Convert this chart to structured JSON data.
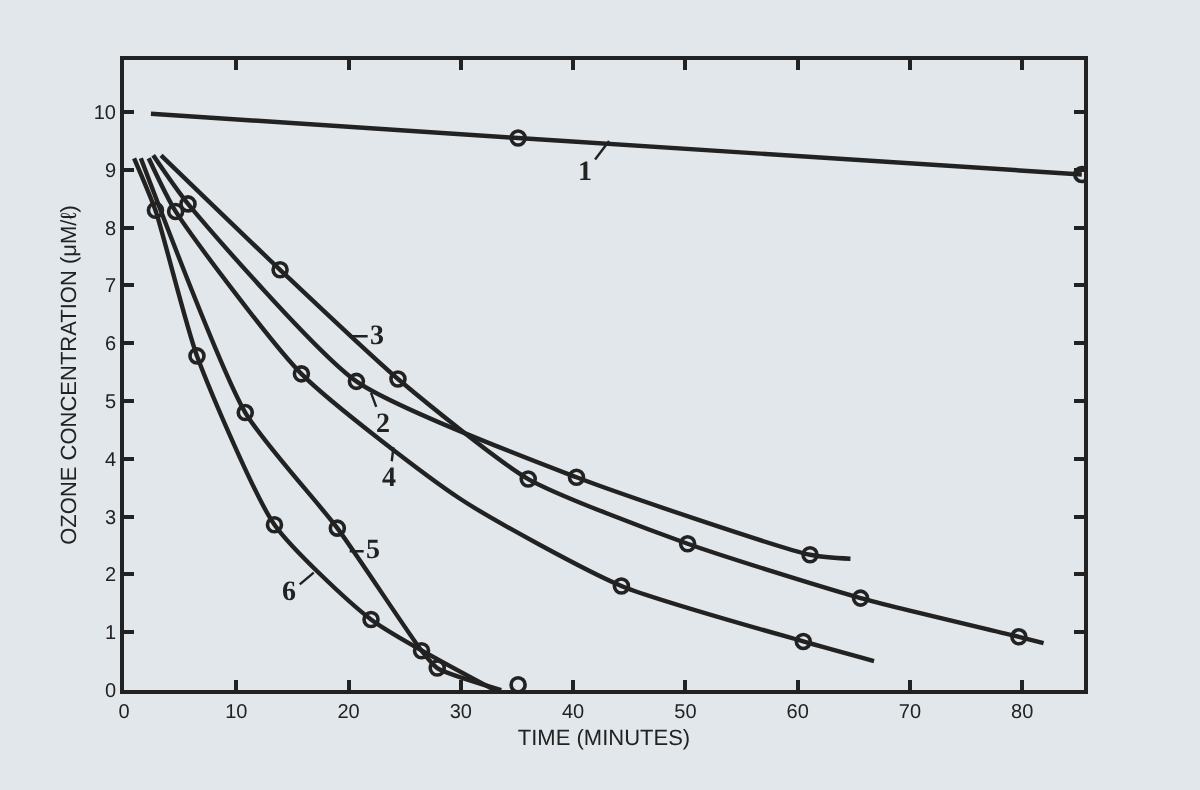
{
  "chart_data": {
    "type": "line",
    "xlabel": "TIME (MINUTES)",
    "ylabel": "OZONE CONCENTRATION (μM/ℓ)",
    "xlim": [
      0,
      85.5
    ],
    "ylim": [
      0,
      10.9
    ],
    "xticks": [
      0,
      10,
      20,
      30,
      40,
      50,
      60,
      70,
      80
    ],
    "yticks": [
      0,
      1,
      2,
      3,
      4,
      5,
      6,
      7,
      8,
      9,
      10
    ],
    "grid": false,
    "line_style": "solid",
    "series": [
      {
        "marker": "none",
        "color": "#222222",
        "x": [
          2.4,
          35.1,
          85.3
        ],
        "values": [
          9.97,
          9.55,
          8.92
        ]
      },
      {
        "marker": "none",
        "color": "#222222",
        "x": [
          2.6,
          5.7,
          20.7,
          40.3,
          61.1,
          64.7
        ],
        "values": [
          9.25,
          8.41,
          5.34,
          3.68,
          2.34,
          2.27
        ]
      },
      {
        "marker": "none",
        "color": "#222222",
        "x": [
          3.3,
          13.9,
          24.4,
          36.0,
          50.2,
          65.6,
          79.7,
          81.9
        ],
        "values": [
          9.25,
          7.27,
          5.38,
          3.65,
          2.53,
          1.59,
          0.92,
          0.81
        ]
      },
      {
        "marker": "none",
        "color": "#222222",
        "x": [
          2.2,
          4.6,
          15.8,
          30.0,
          44.3,
          60.5,
          66.8
        ],
        "values": [
          9.2,
          8.28,
          5.47,
          3.3,
          1.8,
          0.84,
          0.5
        ]
      },
      {
        "marker": "none",
        "color": "#222222",
        "x": [
          1.5,
          10.8,
          19.0,
          26.5,
          27.9,
          33.6
        ],
        "values": [
          9.2,
          4.8,
          2.8,
          0.68,
          0.38,
          0
        ]
      },
      {
        "marker": "none",
        "color": "#222222",
        "x": [
          0.9,
          2.8,
          6.5,
          13.4,
          22.0,
          33.0
        ],
        "values": [
          9.2,
          8.3,
          5.78,
          2.86,
          1.22,
          0
        ]
      },
      {
        "type": "scatter",
        "marker": "circle",
        "color": "#222222",
        "x": [
          35.1,
          85.3,
          5.7,
          20.7,
          40.3,
          61.1,
          13.9,
          24.4,
          36.0,
          50.2,
          65.6,
          79.7,
          4.6,
          15.8,
          44.3,
          60.5,
          10.8,
          19.0,
          26.5,
          27.9,
          2.8,
          6.5,
          13.4,
          22.0,
          35.1
        ],
        "values": [
          9.55,
          8.92,
          8.41,
          5.34,
          3.68,
          2.34,
          7.27,
          5.38,
          3.65,
          2.53,
          1.59,
          0.92,
          8.28,
          5.47,
          1.8,
          0.84,
          4.8,
          2.8,
          0.68,
          0.38,
          8.3,
          5.78,
          2.86,
          1.22,
          0.09
        ]
      }
    ],
    "annotations": [
      {
        "text": "1",
        "x": 43.2,
        "y": 9.5
      },
      {
        "text": "2",
        "x": 22.0,
        "y": 5.14
      },
      {
        "text": "3",
        "x": 20.1,
        "y": 6.12
      },
      {
        "text": "4",
        "x": 24.0,
        "y": 4.2
      },
      {
        "text": "5",
        "x": 20.1,
        "y": 2.4
      },
      {
        "text": "6",
        "x": 16.9,
        "y": 2.03
      }
    ]
  }
}
